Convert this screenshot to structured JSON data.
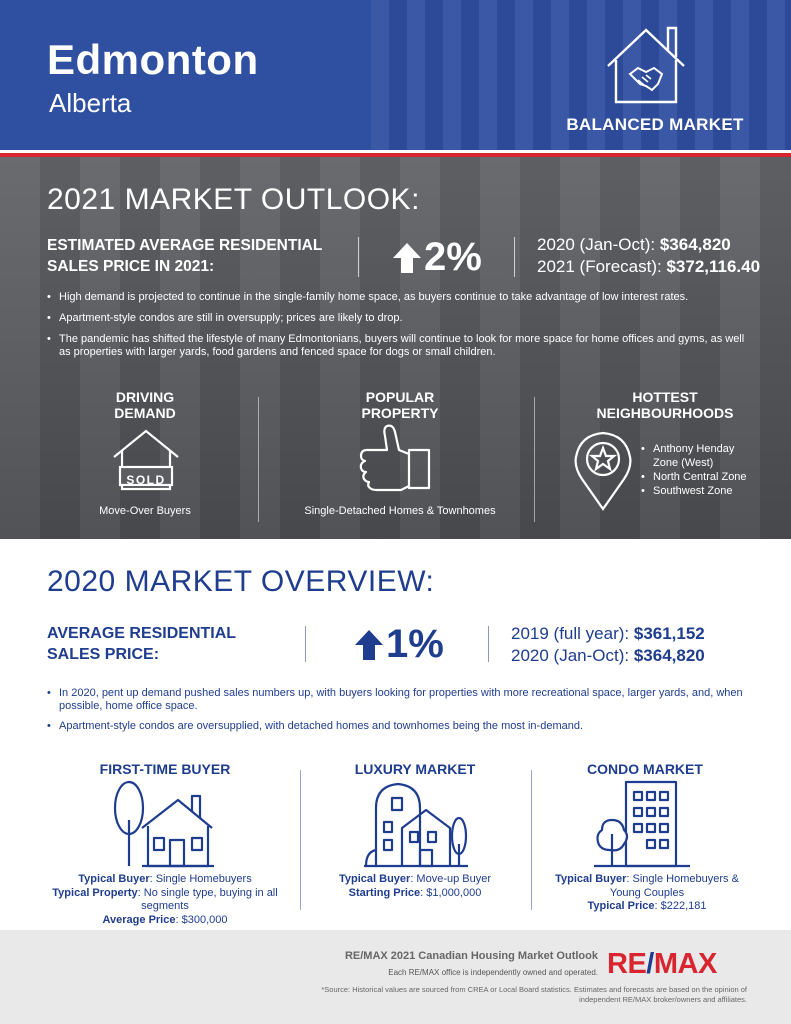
{
  "header": {
    "city": "Edmonton",
    "province": "Alberta",
    "market_badge": "BALANCED MARKET",
    "icon": "house-handshake-icon"
  },
  "outlook": {
    "title": "2021 MARKET OUTLOOK:",
    "label": "ESTIMATED AVERAGE RESIDENTIAL SALES PRICE IN 2021:",
    "change": "2%",
    "price_2020_label": "2020 (Jan-Oct):",
    "price_2020": "$364,820",
    "price_2021_label": "2021 (Forecast):",
    "price_2021": "$372,116.40",
    "bullets": [
      "High demand is projected to continue in the single-family home space, as buyers continue to take advantage of low interest rates.",
      "Apartment-style condos are still in oversupply; prices are likely to drop.",
      "The pandemic has shifted the lifestyle of many Edmontonians, buyers will continue to look for more space for home offices and gyms, as well as properties with larger yards, food gardens and fenced space for dogs or small children."
    ],
    "driving_demand": {
      "title_1": "DRIVING",
      "title_2": "DEMAND",
      "sign": "SOLD",
      "caption": "Move-Over Buyers"
    },
    "popular_property": {
      "title_1": "POPULAR",
      "title_2": "PROPERTY",
      "caption": "Single-Detached Homes & Townhomes"
    },
    "hottest": {
      "title_1": "HOTTEST",
      "title_2": "NEIGHBOURHOODS",
      "items": [
        "Anthony Henday",
        "Zone (West)",
        "North Central Zone",
        "Southwest Zone"
      ]
    }
  },
  "overview": {
    "title": "2020 MARKET OVERVIEW:",
    "label_1": "AVERAGE RESIDENTIAL",
    "label_2": "SALES PRICE:",
    "change": "1%",
    "price_2019_label": "2019 (full year):",
    "price_2019": "$361,152",
    "price_2020_label": "2020 (Jan-Oct):",
    "price_2020": "$364,820",
    "bullets": [
      "In 2020, pent up demand pushed sales numbers up, with buyers looking for properties with more recreational space, larger yards, and, when possible, home office space.",
      "Apartment-style condos are oversupplied, with detached homes and townhomes being the most in-demand."
    ],
    "segments": [
      {
        "title": "FIRST-TIME BUYER",
        "l1_key": "Typical Buyer",
        "l1_val": ": Single Homebuyers",
        "l2_key": "Typical Property",
        "l2_val": ": No single type, buying in all segments",
        "l3_key": "Average Price",
        "l3_val": ": $300,000"
      },
      {
        "title": "LUXURY MARKET",
        "l1_key": "Typical Buyer",
        "l1_val": ": Move-up Buyer",
        "l2_key": "Starting Price",
        "l2_val": ": $1,000,000"
      },
      {
        "title": "CONDO MARKET",
        "l1_key": "Typical Buyer",
        "l1_val": ": Single Homebuyers & Young Couples",
        "l2_key": "Typical Price",
        "l2_val": ": $222,181"
      }
    ]
  },
  "footer": {
    "title": "RE/MAX 2021 Canadian Housing Market Outlook",
    "sub": "Each RE/MAX office is independently owned and operated.",
    "source": "*Source: Historical values are sourced from CREA or Local Board statistics. Estimates and forecasts are based on the opinion of independent RE/MAX broker/owners and affiliates.",
    "logo_left": "RE",
    "logo_slash": "/",
    "logo_right": "MAX",
    "brand_red": "#d8252f",
    "brand_blue": "#1f3d8f"
  }
}
